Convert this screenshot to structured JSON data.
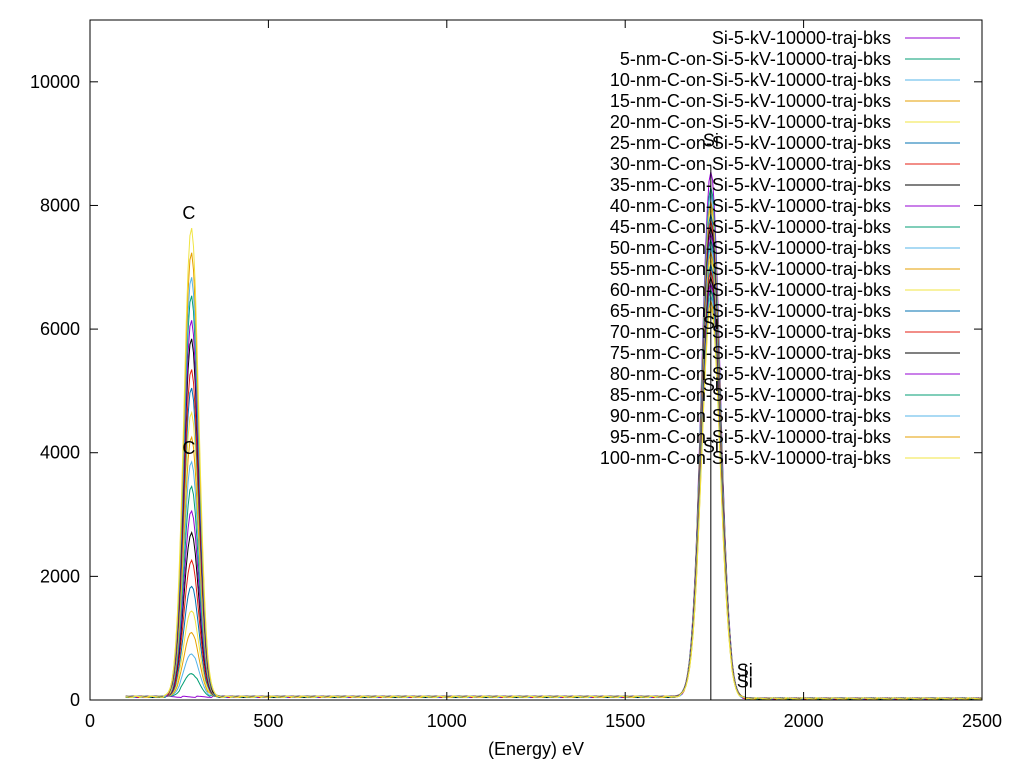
{
  "chart_data": {
    "type": "line",
    "title": "",
    "xlabel": "(Energy) eV",
    "ylabel": "",
    "xlim": [
      0,
      2500
    ],
    "ylim": [
      0,
      11000
    ],
    "x_ticks": [
      0,
      500,
      1000,
      1500,
      2000,
      2500
    ],
    "y_ticks": [
      0,
      2000,
      4000,
      6000,
      8000,
      10000
    ],
    "x_tick_labels": [
      "0",
      "500",
      "1000",
      "1500",
      "2000",
      "2500"
    ],
    "y_tick_labels": [
      "0",
      "2000",
      "4000",
      "6000",
      "8000",
      "10000"
    ],
    "grid": false,
    "legend_position": "top-right",
    "peaks": {
      "carbon_center_ev": 284,
      "carbon_sigma_ev": 21,
      "silicon_center_ev": 1740,
      "silicon_sigma_ev": 26,
      "background_counts": 40
    },
    "peak_labels": [
      {
        "text": "C",
        "energy": 277,
        "counts": 7780
      },
      {
        "text": "C",
        "energy": 277,
        "counts": 3980
      },
      {
        "text": "Si",
        "energy": 1740,
        "counts": 8950
      },
      {
        "text": "Si",
        "energy": 1740,
        "counts": 6000
      },
      {
        "text": "Si",
        "energy": 1740,
        "counts": 5000
      },
      {
        "text": "Si",
        "energy": 1740,
        "counts": 4000
      },
      {
        "text": "Si",
        "energy": 1835,
        "counts": 380
      },
      {
        "text": "Si",
        "energy": 1835,
        "counts": 200
      }
    ],
    "marker_lines": [
      {
        "energy": 1740,
        "from": 0,
        "to": 8650
      },
      {
        "energy": 1837,
        "from": 0,
        "to": 550
      }
    ],
    "series": [
      {
        "name": "Si-5-kV-10000-traj-bks",
        "color": "#9400d3",
        "c_peak": 0,
        "si_peak": 8500
      },
      {
        "name": "5-nm-C-on-Si-5-kV-10000-traj-bks",
        "color": "#009e73",
        "c_peak": 380,
        "si_peak": 8250
      },
      {
        "name": "10-nm-C-on-Si-5-kV-10000-traj-bks",
        "color": "#56b4e9",
        "c_peak": 700,
        "si_peak": 8150
      },
      {
        "name": "15-nm-C-on-Si-5-kV-10000-traj-bks",
        "color": "#e69f00",
        "c_peak": 1050,
        "si_peak": 8000
      },
      {
        "name": "20-nm-C-on-Si-5-kV-10000-traj-bks",
        "color": "#f0e442",
        "c_peak": 1400,
        "si_peak": 7900
      },
      {
        "name": "25-nm-C-on-Si-5-kV-10000-traj-bks",
        "color": "#0072b2",
        "c_peak": 1800,
        "si_peak": 7800
      },
      {
        "name": "30-nm-C-on-Si-5-kV-10000-traj-bks",
        "color": "#e51e10",
        "c_peak": 2200,
        "si_peak": 7700
      },
      {
        "name": "35-nm-C-on-Si-5-kV-10000-traj-bks",
        "color": "#000000",
        "c_peak": 2650,
        "si_peak": 7600
      },
      {
        "name": "40-nm-C-on-Si-5-kV-10000-traj-bks",
        "color": "#9400d3",
        "c_peak": 3000,
        "si_peak": 7500
      },
      {
        "name": "45-nm-C-on-Si-5-kV-10000-traj-bks",
        "color": "#009e73",
        "c_peak": 3400,
        "si_peak": 7400
      },
      {
        "name": "50-nm-C-on-Si-5-kV-10000-traj-bks",
        "color": "#56b4e9",
        "c_peak": 3800,
        "si_peak": 7300
      },
      {
        "name": "55-nm-C-on-Si-5-kV-10000-traj-bks",
        "color": "#e69f00",
        "c_peak": 4200,
        "si_peak": 7200
      },
      {
        "name": "60-nm-C-on-Si-5-kV-10000-traj-bks",
        "color": "#f0e442",
        "c_peak": 4600,
        "si_peak": 7100
      },
      {
        "name": "65-nm-C-on-Si-5-kV-10000-traj-bks",
        "color": "#0072b2",
        "c_peak": 5000,
        "si_peak": 7000
      },
      {
        "name": "70-nm-C-on-Si-5-kV-10000-traj-bks",
        "color": "#e51e10",
        "c_peak": 5300,
        "si_peak": 6900
      },
      {
        "name": "75-nm-C-on-Si-5-kV-10000-traj-bks",
        "color": "#000000",
        "c_peak": 5800,
        "si_peak": 6800
      },
      {
        "name": "80-nm-C-on-Si-5-kV-10000-traj-bks",
        "color": "#9400d3",
        "c_peak": 6100,
        "si_peak": 6700
      },
      {
        "name": "85-nm-C-on-Si-5-kV-10000-traj-bks",
        "color": "#009e73",
        "c_peak": 6500,
        "si_peak": 6600
      },
      {
        "name": "90-nm-C-on-Si-5-kV-10000-traj-bks",
        "color": "#56b4e9",
        "c_peak": 6800,
        "si_peak": 6500
      },
      {
        "name": "95-nm-C-on-Si-5-kV-10000-traj-bks",
        "color": "#e69f00",
        "c_peak": 7200,
        "si_peak": 6400
      },
      {
        "name": "100-nm-C-on-Si-5-kV-10000-traj-bks",
        "color": "#f0e442",
        "c_peak": 7600,
        "si_peak": 6300
      }
    ]
  }
}
